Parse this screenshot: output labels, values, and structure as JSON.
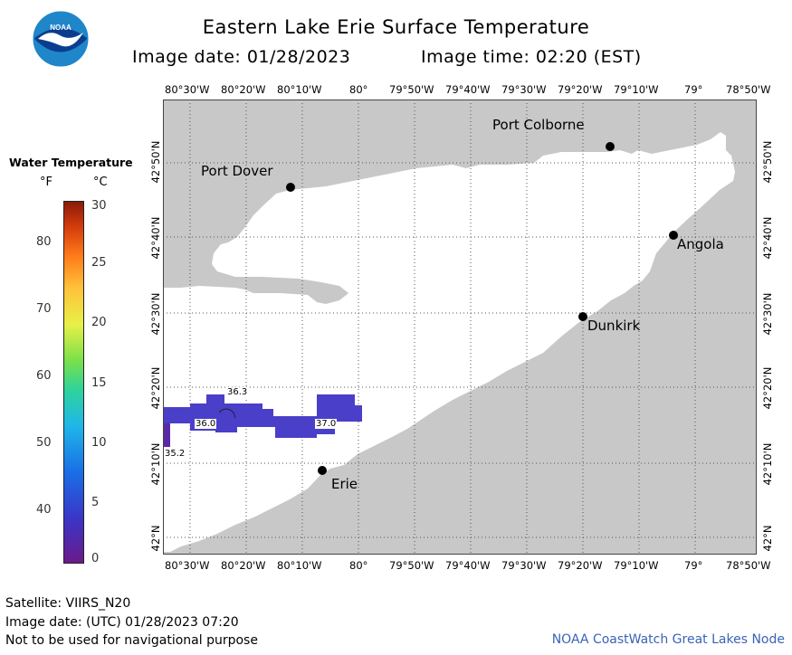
{
  "header": {
    "title": "Eastern Lake Erie Surface Temperature",
    "image_date_label": "Image date: 01/28/2023",
    "image_time_label": "Image time: 02:20 (EST)"
  },
  "logo": {
    "text": "NOAA",
    "colors": {
      "outer": "#1f86c9",
      "inner": "#0a3d8f",
      "bird": "#ffffff"
    }
  },
  "legend": {
    "title": "Water Temperature",
    "unit_f": "°F",
    "unit_c": "°C",
    "fahrenheit_ticks": [
      "80",
      "70",
      "60",
      "50",
      "40"
    ],
    "celsius_ticks": [
      "30",
      "25",
      "20",
      "15",
      "10",
      "5",
      "0"
    ],
    "colormap": [
      "#6a1b8a",
      "#3b35c6",
      "#1a6ee6",
      "#1fb7e8",
      "#2fd39a",
      "#7ae04a",
      "#e8f048",
      "#ffc23a",
      "#ff7a1a",
      "#d43c0c",
      "#8a1a0a"
    ]
  },
  "map": {
    "lon_labels": [
      "80°30'W",
      "80°20'W",
      "80°10'W",
      "80°",
      "79°50'W",
      "79°40'W",
      "79°30'W",
      "79°20'W",
      "79°10'W",
      "79°",
      "78°50'W"
    ],
    "lat_labels": [
      "42°50'N",
      "42°40'N",
      "42°30'N",
      "42°20'N",
      "42°10'N",
      "42°N"
    ],
    "cities": [
      {
        "name": "Port Colborne"
      },
      {
        "name": "Port Dover"
      },
      {
        "name": "Angola"
      },
      {
        "name": "Dunkirk"
      },
      {
        "name": "Erie"
      }
    ],
    "temperature_labels": [
      "36.3",
      "36.0",
      "37.0",
      "35.2"
    ],
    "colors": {
      "land": "#c8c8c8",
      "water": "#ffffff",
      "gridline": "#555555",
      "ice_band": "#4a3fc8"
    }
  },
  "footer": {
    "satellite": "Satellite: VIIRS_N20",
    "utc_date": "Image date: (UTC) 01/28/2023  07:20",
    "disclaimer": "Not to be used for navigational purpose",
    "credit": "NOAA CoastWatch Great Lakes Node"
  }
}
